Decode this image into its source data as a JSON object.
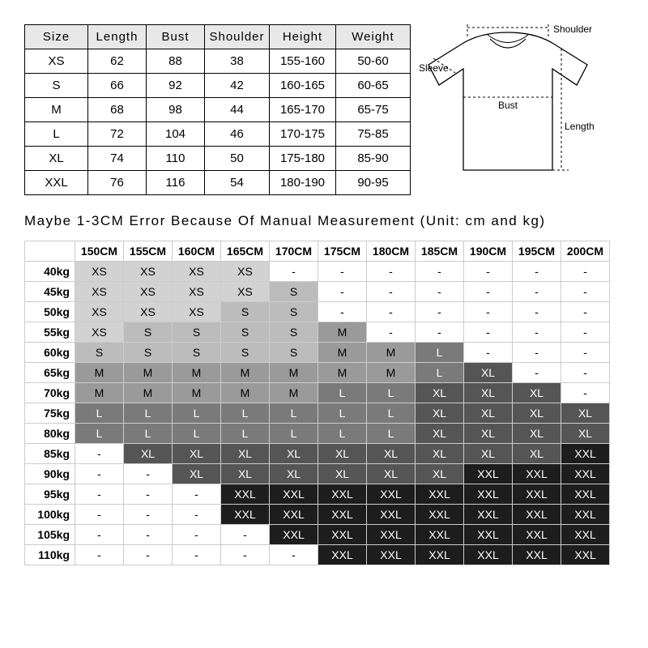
{
  "size_table": {
    "columns": [
      "Size",
      "Length",
      "Bust",
      "Shoulder",
      "Height",
      "Weight"
    ],
    "rows": [
      [
        "XS",
        "62",
        "88",
        "38",
        "155-160",
        "50-60"
      ],
      [
        "S",
        "66",
        "92",
        "42",
        "160-165",
        "60-65"
      ],
      [
        "M",
        "68",
        "98",
        "44",
        "165-170",
        "65-75"
      ],
      [
        "L",
        "72",
        "104",
        "46",
        "170-175",
        "75-85"
      ],
      [
        "XL",
        "74",
        "110",
        "50",
        "175-180",
        "85-90"
      ],
      [
        "XXL",
        "76",
        "116",
        "54",
        "180-190",
        "90-95"
      ]
    ]
  },
  "tshirt_labels": {
    "shoulder": "Shoulder",
    "sleeve": "Sleeve",
    "bust": "Bust",
    "length": "Length"
  },
  "note": "Maybe 1-3CM Error Because Of Manual Measurement (Unit: cm and kg)",
  "rec_table": {
    "heights": [
      "150CM",
      "155CM",
      "160CM",
      "165CM",
      "170CM",
      "175CM",
      "180CM",
      "185CM",
      "190CM",
      "195CM",
      "200CM"
    ],
    "weights": [
      "40kg",
      "45kg",
      "50kg",
      "55kg",
      "60kg",
      "65kg",
      "70kg",
      "75kg",
      "80kg",
      "85kg",
      "90kg",
      "95kg",
      "100kg",
      "105kg",
      "110kg"
    ],
    "cells": [
      [
        "XS",
        "XS",
        "XS",
        "XS",
        "-",
        "-",
        "-",
        "-",
        "-",
        "-",
        "-"
      ],
      [
        "XS",
        "XS",
        "XS",
        "XS",
        "S",
        "-",
        "-",
        "-",
        "-",
        "-",
        "-"
      ],
      [
        "XS",
        "XS",
        "XS",
        "S",
        "S",
        "-",
        "-",
        "-",
        "-",
        "-",
        "-"
      ],
      [
        "XS",
        "S",
        "S",
        "S",
        "S",
        "M",
        "-",
        "-",
        "-",
        "-",
        "-"
      ],
      [
        "S",
        "S",
        "S",
        "S",
        "S",
        "M",
        "M",
        "L",
        "-",
        "-",
        "-"
      ],
      [
        "M",
        "M",
        "M",
        "M",
        "M",
        "M",
        "M",
        "L",
        "XL",
        "-",
        "-"
      ],
      [
        "M",
        "M",
        "M",
        "M",
        "M",
        "L",
        "L",
        "XL",
        "XL",
        "XL",
        "-"
      ],
      [
        "L",
        "L",
        "L",
        "L",
        "L",
        "L",
        "L",
        "XL",
        "XL",
        "XL",
        "XL"
      ],
      [
        "L",
        "L",
        "L",
        "L",
        "L",
        "L",
        "L",
        "XL",
        "XL",
        "XL",
        "XL"
      ],
      [
        "-",
        "XL",
        "XL",
        "XL",
        "XL",
        "XL",
        "XL",
        "XL",
        "XL",
        "XL",
        "XXL"
      ],
      [
        "-",
        "-",
        "XL",
        "XL",
        "XL",
        "XL",
        "XL",
        "XL",
        "XXL",
        "XXL",
        "XXL"
      ],
      [
        "-",
        "-",
        "-",
        "XXL",
        "XXL",
        "XXL",
        "XXL",
        "XXL",
        "XXL",
        "XXL",
        "XXL"
      ],
      [
        "-",
        "-",
        "-",
        "XXL",
        "XXL",
        "XXL",
        "XXL",
        "XXL",
        "XXL",
        "XXL",
        "XXL"
      ],
      [
        "-",
        "-",
        "-",
        "-",
        "XXL",
        "XXL",
        "XXL",
        "XXL",
        "XXL",
        "XXL",
        "XXL"
      ],
      [
        "-",
        "-",
        "-",
        "-",
        "-",
        "XXL",
        "XXL",
        "XXL",
        "XXL",
        "XXL",
        "XXL"
      ]
    ]
  },
  "shade_map": {
    "XS": "sXS",
    "S": "sS",
    "M": "sM",
    "L": "sL",
    "XL": "sXL",
    "XXL": "sXXL",
    "-": "sDash"
  },
  "style": {
    "background": "#ffffff",
    "size_header_bg": "#e8e8e8",
    "rec_border": "#cccccc",
    "shades": {
      "XS": "#d2d2d2",
      "S": "#bcbcbc",
      "M": "#9a9a9a",
      "L": "#7a7a7a",
      "XL": "#555555",
      "XXL": "#1d1d1d",
      "dash": "#ffffff"
    },
    "tshirt": {
      "stroke": "#000000",
      "dash_stroke": "#000000",
      "label_fontsize": 12
    }
  }
}
